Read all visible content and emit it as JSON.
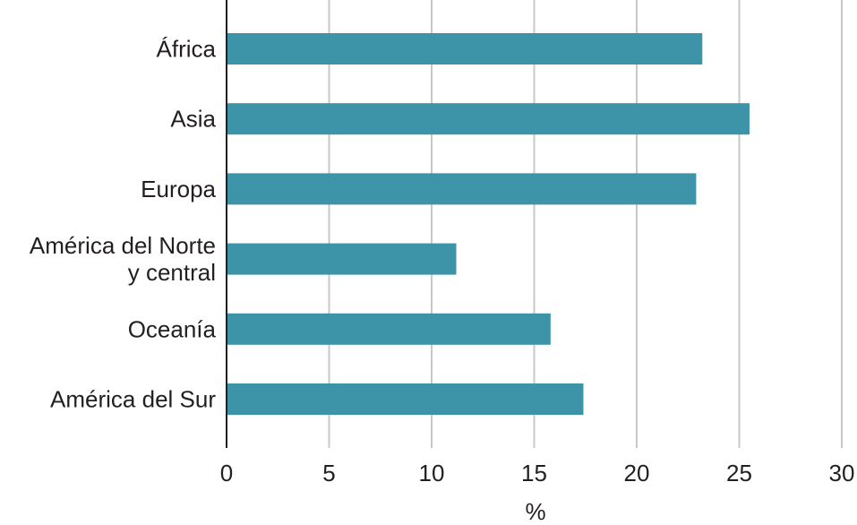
{
  "chart_data": {
    "type": "bar",
    "orientation": "horizontal",
    "title": "",
    "xlabel": "%",
    "ylabel": "",
    "categories": [
      [
        "África"
      ],
      [
        "Asia"
      ],
      [
        "Europa"
      ],
      [
        "América del Norte",
        "y central"
      ],
      [
        "Oceanía"
      ],
      [
        "América del Sur"
      ]
    ],
    "values": [
      23.2,
      25.5,
      22.9,
      11.2,
      15.8,
      17.4
    ],
    "xlim": [
      0,
      30
    ],
    "xticks": [
      "0",
      "5",
      "10",
      "15",
      "20",
      "25",
      "30"
    ],
    "grid": true,
    "colors": {
      "bar": "#3d93a8",
      "grid": "#c8c8c8",
      "axis": "#231f20"
    }
  }
}
